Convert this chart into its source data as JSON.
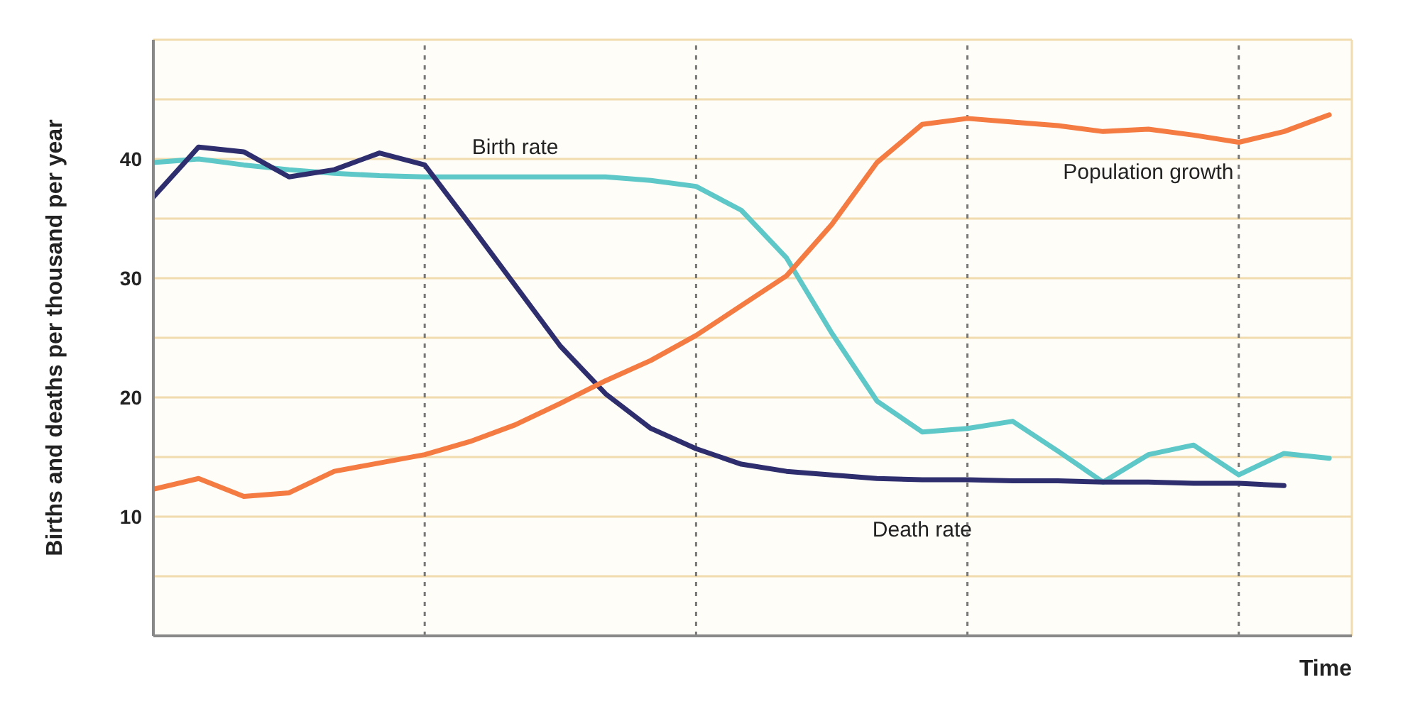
{
  "chart_data": {
    "type": "line",
    "xlabel": "Time",
    "ylabel": "Births and deaths per thousand per year",
    "categories": [
      null,
      null,
      null,
      null,
      null,
      null,
      null,
      null,
      null,
      null,
      null,
      null,
      null,
      null,
      null,
      null,
      null,
      null,
      null,
      null,
      null,
      null,
      null,
      null,
      null,
      null,
      null
    ],
    "ylim": [
      0,
      50
    ],
    "yticks": [
      {
        "value": 0,
        "label": null
      },
      {
        "value": 5,
        "label": null
      },
      10,
      {
        "value": 15,
        "label": null
      },
      20,
      {
        "value": 25,
        "label": null
      },
      30,
      {
        "value": 35,
        "label": null
      },
      40,
      {
        "value": 45,
        "label": null
      },
      {
        "value": 50,
        "label": null
      }
    ],
    "tick_labels": "y",
    "grid": true,
    "marker": "none",
    "line_style": "solid",
    "series": [
      {
        "name": "Birth rate",
        "color": "#5ec8c8",
        "values": [
          39.7,
          40,
          39.5,
          39.1,
          38.8,
          38.6,
          38.5,
          38.5,
          38.5,
          38.5,
          38.5,
          38.2,
          37.7,
          35.7,
          31.7,
          25.4,
          19.7,
          17.1,
          17.4,
          18,
          15.5,
          12.9,
          15.2,
          16,
          13.5,
          15.3,
          14.9
        ]
      },
      {
        "name": "Death rate",
        "color": "#2e2e6e",
        "values": [
          36.8,
          41,
          40.6,
          38.5,
          39.1,
          40.5,
          39.5,
          34.5,
          29.4,
          24.3,
          20.3,
          17.4,
          15.7,
          14.4,
          13.8,
          13.5,
          13.2,
          13.1,
          13.1,
          13,
          13,
          12.9,
          12.9,
          12.8,
          12.8,
          12.6,
          null
        ]
      },
      {
        "name": "Population growth",
        "color": "#f47b42",
        "values": [
          12.3,
          13.2,
          11.7,
          12,
          13.8,
          14.5,
          15.2,
          16.3,
          17.7,
          19.5,
          21.4,
          23.1,
          25.2,
          27.7,
          30.2,
          34.5,
          39.7,
          42.9,
          43.4,
          43.1,
          42.8,
          42.3,
          42.5,
          42,
          41.4,
          42.3,
          43.7
        ]
      }
    ]
  }
}
